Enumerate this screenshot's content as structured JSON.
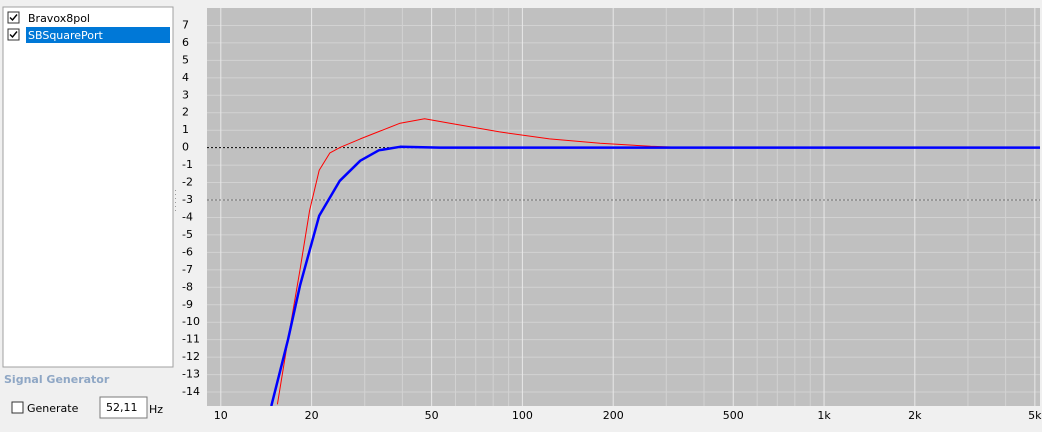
{
  "panel": {
    "items": [
      {
        "label": "Bravox8pol",
        "checked": true,
        "selected": false
      },
      {
        "label": "SBSquarePort",
        "checked": true,
        "selected": true
      }
    ]
  },
  "signal_generator": {
    "title": "Signal Generator",
    "checkbox_label": "Generate",
    "checked": false,
    "frequency": "52,11",
    "unit": "Hz"
  },
  "chart_data": {
    "type": "line",
    "log_x": true,
    "grid": true,
    "xlim": [
      9,
      5200
    ],
    "ylim": [
      -14.8,
      8
    ],
    "xticks": [
      10,
      20,
      50,
      100,
      200,
      500,
      {
        "value": 1000,
        "label": "1k"
      },
      {
        "value": 2000,
        "label": "2k"
      },
      {
        "value": 5000,
        "label": "5k"
      }
    ],
    "xminor": [
      30,
      40,
      60,
      70,
      80,
      90,
      300,
      400,
      600,
      700,
      800,
      900,
      3000,
      4000
    ],
    "yticks": [
      7,
      6,
      5,
      4,
      3,
      2,
      1,
      0,
      -1,
      -2,
      -3,
      -4,
      -5,
      -6,
      -7,
      -8,
      -9,
      -10,
      -11,
      -12,
      -13,
      -14
    ],
    "reference_lines": [
      {
        "value": 0,
        "color": "#000000"
      },
      {
        "value": -3,
        "color": "#707070"
      }
    ],
    "series": [
      {
        "name": "Bravox8pol",
        "color": "#ff0000",
        "width": 1,
        "x": [
          15.4,
          16.7,
          18.3,
          19.7,
          21.2,
          23,
          24.8,
          29,
          39.3,
          47.4,
          57.5,
          84,
          123,
          181,
          266,
          354
        ],
        "values": [
          -14.7,
          -11,
          -7,
          -3.6,
          -1.3,
          -0.3,
          0,
          0.5,
          1.4,
          1.65,
          1.4,
          0.9,
          0.5,
          0.25,
          0.08,
          0
        ]
      },
      {
        "name": "SBSquarePort",
        "color": "#0000ff",
        "width": 2.5,
        "x": [
          14.7,
          16.7,
          18.3,
          21.2,
          24.8,
          29,
          33.4,
          39.3,
          53.2,
          100,
          1000,
          5200
        ],
        "values": [
          -14.8,
          -11,
          -7.9,
          -3.9,
          -1.9,
          -0.75,
          -0.15,
          0.05,
          0,
          0,
          0,
          0
        ]
      }
    ]
  }
}
